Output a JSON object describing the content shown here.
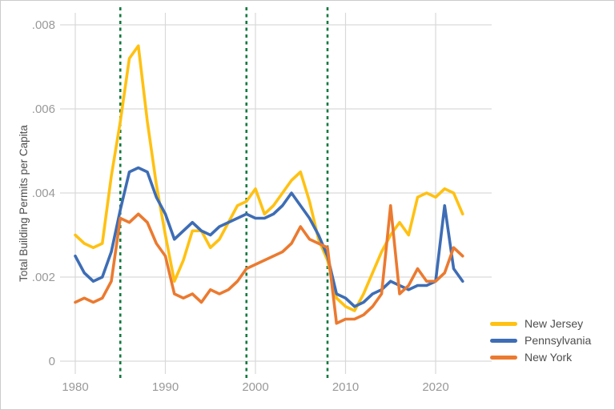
{
  "chart_data": {
    "type": "line",
    "title": "",
    "xlabel": "",
    "ylabel": "Total Building Permits per Capita",
    "x": [
      1980,
      1981,
      1982,
      1983,
      1984,
      1985,
      1986,
      1987,
      1988,
      1989,
      1990,
      1991,
      1992,
      1993,
      1994,
      1995,
      1996,
      1997,
      1998,
      1999,
      2000,
      2001,
      2002,
      2003,
      2004,
      2005,
      2006,
      2007,
      2008,
      2009,
      2010,
      2011,
      2012,
      2013,
      2014,
      2015,
      2016,
      2017,
      2018,
      2019,
      2020,
      2021,
      2022,
      2023
    ],
    "x_ticks": [
      1980,
      1990,
      2000,
      2010,
      2020
    ],
    "y_ticks": [
      0,
      0.002,
      0.004,
      0.006,
      0.008
    ],
    "y_tick_labels": [
      "0",
      ".002",
      ".004",
      ".006",
      ".008"
    ],
    "ylim": [
      0,
      0.0082
    ],
    "grid": true,
    "legend_position": "bottom-right",
    "reference_lines": {
      "years": [
        1985,
        1999,
        2008
      ],
      "style": "dashed",
      "color": "#127a3f"
    },
    "colors": {
      "grid": "#d9d9d9",
      "tick_text": "#999999",
      "axis_title_text": "#4d4d4d",
      "border": "#cbcbcb"
    },
    "series": [
      {
        "name": "New Jersey",
        "color": "#ffc112",
        "values": [
          0.003,
          0.0028,
          0.0027,
          0.0028,
          0.0044,
          0.0057,
          0.0072,
          0.0075,
          0.0057,
          0.0042,
          0.003,
          0.0019,
          0.0024,
          0.0031,
          0.0031,
          0.0027,
          0.0029,
          0.0033,
          0.0037,
          0.0038,
          0.0041,
          0.0035,
          0.0037,
          0.004,
          0.0043,
          0.0045,
          0.0038,
          0.0029,
          0.0024,
          0.0015,
          0.0013,
          0.0012,
          0.0016,
          0.0021,
          0.0026,
          0.003,
          0.0033,
          0.003,
          0.0039,
          0.004,
          0.0039,
          0.0041,
          0.004,
          0.0035
        ]
      },
      {
        "name": "Pennsylvania",
        "color": "#3e6db5",
        "values": [
          0.0025,
          0.0021,
          0.0019,
          0.002,
          0.0026,
          0.0036,
          0.0045,
          0.0046,
          0.0045,
          0.0039,
          0.0035,
          0.0029,
          0.0031,
          0.0033,
          0.0031,
          0.003,
          0.0032,
          0.0033,
          0.0034,
          0.0035,
          0.0034,
          0.0034,
          0.0035,
          0.0037,
          0.004,
          0.0037,
          0.0034,
          0.003,
          0.0025,
          0.0016,
          0.0015,
          0.0013,
          0.0014,
          0.0016,
          0.0017,
          0.0019,
          0.0018,
          0.0017,
          0.0018,
          0.0018,
          0.0019,
          0.0037,
          0.0022,
          0.0019
        ]
      },
      {
        "name": "New York",
        "color": "#eb7a30",
        "values": [
          0.0014,
          0.0015,
          0.0014,
          0.0015,
          0.0019,
          0.0034,
          0.0033,
          0.0035,
          0.0033,
          0.0028,
          0.0025,
          0.0016,
          0.0015,
          0.0016,
          0.0014,
          0.0017,
          0.0016,
          0.0017,
          0.0019,
          0.0022,
          0.0023,
          0.0024,
          0.0025,
          0.0026,
          0.0028,
          0.0032,
          0.0029,
          0.0028,
          0.0027,
          0.0009,
          0.001,
          0.001,
          0.0011,
          0.0013,
          0.0016,
          0.0037,
          0.0016,
          0.0018,
          0.0022,
          0.0019,
          0.0019,
          0.0021,
          0.0027,
          0.0025
        ]
      }
    ]
  }
}
